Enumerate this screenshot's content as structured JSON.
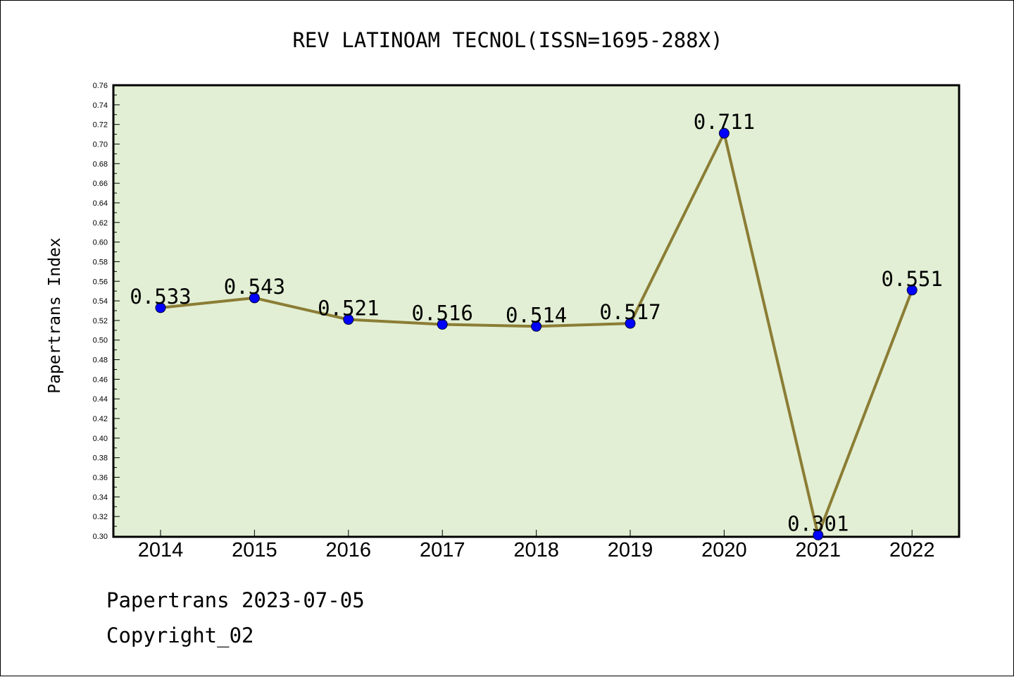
{
  "chart_data": {
    "type": "line",
    "title": "REV LATINOAM TECNOL(ISSN=1695-288X)",
    "xlabel": "",
    "ylabel": "Papertrans Index",
    "categories": [
      "2014",
      "2015",
      "2016",
      "2017",
      "2018",
      "2019",
      "2020",
      "2021",
      "2022"
    ],
    "series": [
      {
        "values": [
          0.533,
          0.543,
          0.521,
          0.516,
          0.514,
          0.517,
          0.711,
          0.301,
          0.551
        ]
      }
    ],
    "data_labels": [
      "0.533",
      "0.543",
      "0.521",
      "0.516",
      "0.514",
      "0.517",
      "0.711",
      "0.301",
      "0.551"
    ],
    "ylim": [
      0.3,
      0.76
    ],
    "y_ticks": [
      "0.30",
      "0.32",
      "0.34",
      "0.36",
      "0.38",
      "0.40",
      "0.42",
      "0.44",
      "0.46",
      "0.48",
      "0.50",
      "0.52",
      "0.54",
      "0.56",
      "0.58",
      "0.60",
      "0.62",
      "0.64",
      "0.66",
      "0.68",
      "0.70",
      "0.72",
      "0.74",
      "0.76"
    ],
    "grid": false,
    "legend": "none",
    "colors": {
      "plot_background": "#e2efd4",
      "line": "#8b7d35",
      "marker": "#0000ff"
    }
  },
  "footer": {
    "line1": "Papertrans 2023-07-05",
    "line2": "Copyright_02"
  }
}
